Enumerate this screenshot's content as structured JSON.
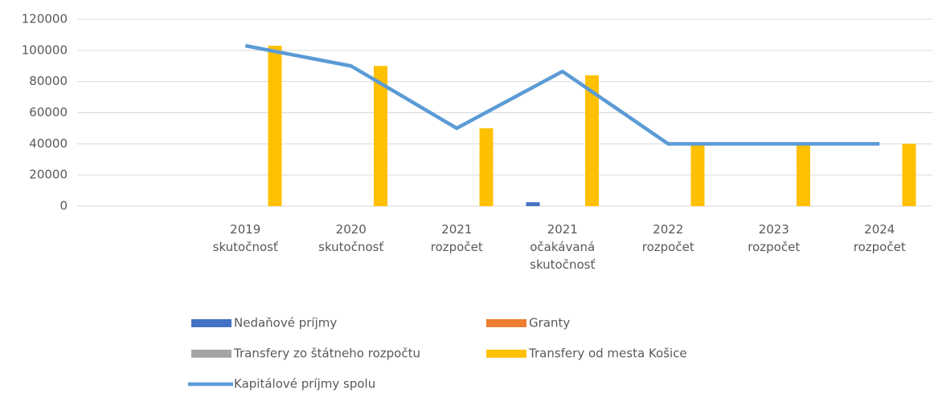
{
  "chart_data": {
    "type": "bar_line",
    "categories": [
      null,
      "2019\nskutočnosť",
      "2020\nskutočnosť",
      "2021\nrozpočet",
      "2021\nočakávaná\nskutočnosť",
      "2022\nrozpočet",
      "2023\nrozpočet",
      "2024\nrozpočet"
    ],
    "series": [
      {
        "name": "Nedaňové príjmy",
        "type": "bar",
        "color": "#4472c4",
        "values": [
          null,
          0,
          0,
          0,
          2500,
          0,
          0,
          0
        ]
      },
      {
        "name": "Granty",
        "type": "bar",
        "color": "#ed7d31",
        "values": [
          null,
          0,
          0,
          0,
          0,
          0,
          0,
          0
        ]
      },
      {
        "name": "Transfery zo štátneho rozpočtu",
        "type": "bar",
        "color": "#a5a5a5",
        "values": [
          null,
          0,
          0,
          0,
          0,
          0,
          0,
          0
        ]
      },
      {
        "name": "Transfery od mesta Košice",
        "type": "bar",
        "color": "#ffc000",
        "values": [
          null,
          103000,
          90000,
          50000,
          84000,
          40000,
          40000,
          40000
        ]
      },
      {
        "name": "Kapitálové príjmy spolu",
        "type": "line",
        "color": "#5b9bd5",
        "values": [
          null,
          103000,
          90000,
          50000,
          86500,
          40000,
          40000,
          40000
        ]
      }
    ],
    "ylim": [
      0,
      120000
    ],
    "yticks": [
      0,
      20000,
      40000,
      60000,
      80000,
      100000,
      120000
    ],
    "grid": true
  }
}
